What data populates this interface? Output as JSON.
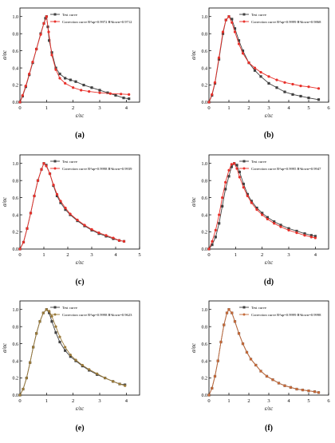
{
  "figure": {
    "ylabel": "σ/σc",
    "xlabel": "ε/εc"
  },
  "chart_data": [
    {
      "panel_label": "(a)",
      "type": "line",
      "xlabel": "ε/εc",
      "ylabel": "σ/σc",
      "xlim": [
        0,
        4.5
      ],
      "ylim": [
        0,
        1.1
      ],
      "xticks": [
        0,
        1,
        2,
        3,
        4
      ],
      "yticks": [
        0.0,
        0.2,
        0.4,
        0.6,
        0.8,
        1.0
      ],
      "legend": "top-right",
      "series": [
        {
          "name": "Test curve",
          "color": "#404040",
          "marker": "square",
          "x": [
            0,
            0.1,
            0.22,
            0.35,
            0.48,
            0.62,
            0.78,
            0.9,
            0.96,
            1.0,
            1.05,
            1.1,
            1.2,
            1.35,
            1.5,
            1.7,
            1.9,
            2.1,
            2.4,
            2.7,
            3.0,
            3.3,
            3.6,
            3.9,
            4.1
          ],
          "y": [
            0,
            0.07,
            0.18,
            0.32,
            0.46,
            0.62,
            0.8,
            0.92,
            0.98,
            1.0,
            0.88,
            0.72,
            0.58,
            0.4,
            0.33,
            0.28,
            0.26,
            0.24,
            0.2,
            0.17,
            0.14,
            0.11,
            0.08,
            0.05,
            0.04
          ]
        },
        {
          "name": "Correction curve R²up=0.9972 R²down=0.9712",
          "color": "#e8302a",
          "marker": "circle",
          "x": [
            0,
            0.1,
            0.22,
            0.35,
            0.48,
            0.62,
            0.78,
            0.9,
            1.0,
            1.08,
            1.2,
            1.35,
            1.5,
            1.7,
            2.0,
            2.3,
            2.6,
            3.0,
            3.4,
            3.8,
            4.1
          ],
          "y": [
            0,
            0.08,
            0.19,
            0.33,
            0.47,
            0.62,
            0.79,
            0.92,
            1.0,
            0.82,
            0.55,
            0.38,
            0.28,
            0.22,
            0.17,
            0.14,
            0.125,
            0.11,
            0.1,
            0.095,
            0.09
          ]
        }
      ]
    },
    {
      "panel_label": "(b)",
      "type": "line",
      "xlabel": "ε/εc",
      "ylabel": "σ/σc",
      "xlim": [
        0,
        6
      ],
      "ylim": [
        0,
        1.1
      ],
      "xticks": [
        0,
        1,
        2,
        3,
        4,
        5,
        6
      ],
      "yticks": [
        0.0,
        0.2,
        0.4,
        0.6,
        0.8,
        1.0
      ],
      "legend": "top-right",
      "series": [
        {
          "name": "Test curve",
          "color": "#404040",
          "marker": "square",
          "x": [
            0,
            0.15,
            0.3,
            0.5,
            0.7,
            0.85,
            1.0,
            1.15,
            1.3,
            1.5,
            1.7,
            2.0,
            2.3,
            2.6,
            3.0,
            3.4,
            3.8,
            4.2,
            4.6,
            5.0,
            5.5
          ],
          "y": [
            0,
            0.08,
            0.22,
            0.5,
            0.8,
            0.96,
            1.0,
            0.97,
            0.86,
            0.72,
            0.6,
            0.46,
            0.37,
            0.3,
            0.22,
            0.17,
            0.12,
            0.09,
            0.07,
            0.05,
            0.03
          ]
        },
        {
          "name": "Correction curve R²up=0.9999 R²down=0.9868",
          "color": "#e8302a",
          "marker": "circle",
          "x": [
            0,
            0.15,
            0.3,
            0.5,
            0.7,
            0.85,
            1.0,
            1.15,
            1.3,
            1.5,
            1.7,
            2.0,
            2.3,
            2.6,
            3.0,
            3.4,
            3.8,
            4.2,
            4.6,
            5.0,
            5.5
          ],
          "y": [
            0,
            0.09,
            0.23,
            0.52,
            0.82,
            0.96,
            1.0,
            0.93,
            0.82,
            0.68,
            0.57,
            0.46,
            0.4,
            0.35,
            0.3,
            0.26,
            0.23,
            0.21,
            0.19,
            0.18,
            0.16
          ]
        }
      ]
    },
    {
      "panel_label": "(c)",
      "type": "line",
      "xlabel": "ε/εc",
      "ylabel": "σ/σc",
      "xlim": [
        0,
        5
      ],
      "ylim": [
        0,
        1.1
      ],
      "xticks": [
        0,
        1,
        2,
        3,
        4,
        5
      ],
      "yticks": [
        0.0,
        0.2,
        0.4,
        0.6,
        0.8,
        1.0
      ],
      "legend": "top-right",
      "series": [
        {
          "name": "Test curve",
          "color": "#404040",
          "marker": "square",
          "x": [
            0,
            0.15,
            0.3,
            0.45,
            0.6,
            0.75,
            0.9,
            1.0,
            1.1,
            1.25,
            1.4,
            1.55,
            1.7,
            1.9,
            2.1,
            2.4,
            2.7,
            3.0,
            3.3,
            3.6,
            3.9,
            4.15,
            4.35
          ],
          "y": [
            0,
            0.08,
            0.24,
            0.42,
            0.62,
            0.8,
            0.93,
            1.0,
            0.98,
            0.88,
            0.74,
            0.62,
            0.54,
            0.46,
            0.4,
            0.33,
            0.27,
            0.22,
            0.18,
            0.15,
            0.12,
            0.1,
            0.09
          ]
        },
        {
          "name": "Correction curve R²up=0.9998 R²down=0.9939",
          "color": "#e8302a",
          "marker": "circle",
          "x": [
            0,
            0.15,
            0.3,
            0.45,
            0.6,
            0.75,
            0.9,
            1.0,
            1.1,
            1.25,
            1.4,
            1.55,
            1.7,
            1.9,
            2.1,
            2.4,
            2.7,
            3.0,
            3.3,
            3.6,
            3.9,
            4.15,
            4.35
          ],
          "y": [
            0,
            0.08,
            0.24,
            0.42,
            0.62,
            0.8,
            0.93,
            1.0,
            0.97,
            0.88,
            0.75,
            0.64,
            0.56,
            0.48,
            0.41,
            0.34,
            0.28,
            0.23,
            0.19,
            0.16,
            0.13,
            0.1,
            0.09
          ]
        }
      ]
    },
    {
      "panel_label": "(d)",
      "type": "line",
      "xlabel": "ε/εc",
      "ylabel": "σ/σc",
      "xlim": [
        0,
        4.5
      ],
      "ylim": [
        0,
        1.1
      ],
      "xticks": [
        0,
        1,
        2,
        3,
        4
      ],
      "yticks": [
        0.0,
        0.2,
        0.4,
        0.6,
        0.8,
        1.0
      ],
      "legend": "top-right",
      "series": [
        {
          "name": "Test curve",
          "color": "#404040",
          "marker": "square",
          "x": [
            0,
            0.12,
            0.25,
            0.38,
            0.5,
            0.62,
            0.75,
            0.85,
            0.95,
            1.05,
            1.15,
            1.3,
            1.45,
            1.6,
            1.8,
            2.0,
            2.2,
            2.45,
            2.7,
            3.0,
            3.3,
            3.6,
            3.85,
            4.0
          ],
          "y": [
            0,
            0.05,
            0.14,
            0.3,
            0.5,
            0.7,
            0.85,
            0.96,
            1.0,
            0.98,
            0.9,
            0.76,
            0.64,
            0.56,
            0.48,
            0.42,
            0.37,
            0.32,
            0.28,
            0.24,
            0.21,
            0.18,
            0.16,
            0.15
          ]
        },
        {
          "name": "Correction curve R²up=0.9995 R²down=0.9947",
          "color": "#e8302a",
          "marker": "circle",
          "x": [
            0,
            0.12,
            0.25,
            0.38,
            0.5,
            0.62,
            0.75,
            0.85,
            0.95,
            1.05,
            1.15,
            1.3,
            1.45,
            1.6,
            1.8,
            2.0,
            2.2,
            2.45,
            2.7,
            3.0,
            3.3,
            3.6,
            3.85,
            4.0
          ],
          "y": [
            0,
            0.09,
            0.22,
            0.4,
            0.6,
            0.78,
            0.92,
            0.99,
            1.0,
            0.94,
            0.84,
            0.72,
            0.62,
            0.54,
            0.46,
            0.4,
            0.35,
            0.3,
            0.26,
            0.22,
            0.19,
            0.16,
            0.14,
            0.13
          ]
        }
      ]
    },
    {
      "panel_label": "(e)",
      "type": "line",
      "xlabel": "ε/εc",
      "ylabel": "σ/σc",
      "xlim": [
        0,
        4.5
      ],
      "ylim": [
        0,
        1.1
      ],
      "xticks": [
        0,
        1,
        2,
        3,
        4
      ],
      "yticks": [
        0.0,
        0.2,
        0.4,
        0.6,
        0.8,
        1.0
      ],
      "legend": "top-right",
      "series": [
        {
          "name": "Test curve",
          "color": "#404040",
          "marker": "square",
          "x": [
            0,
            0.12,
            0.25,
            0.38,
            0.5,
            0.62,
            0.75,
            0.88,
            1.0,
            1.1,
            1.2,
            1.35,
            1.5,
            1.7,
            1.9,
            2.1,
            2.35,
            2.6,
            2.9,
            3.2,
            3.5,
            3.75,
            3.95
          ],
          "y": [
            0,
            0.07,
            0.2,
            0.38,
            0.56,
            0.72,
            0.86,
            0.96,
            1.0,
            0.96,
            0.86,
            0.73,
            0.62,
            0.52,
            0.45,
            0.4,
            0.34,
            0.29,
            0.24,
            0.2,
            0.16,
            0.13,
            0.12
          ]
        },
        {
          "name": "Correction curve R²up=0.9998 R²down=0.9623",
          "color": "#9a7a3a",
          "marker": "circle",
          "x": [
            0,
            0.12,
            0.25,
            0.38,
            0.5,
            0.62,
            0.75,
            0.88,
            1.0,
            1.1,
            1.2,
            1.35,
            1.5,
            1.7,
            1.9,
            2.1,
            2.35,
            2.6,
            2.9,
            3.2,
            3.5,
            3.75,
            3.95
          ],
          "y": [
            0,
            0.07,
            0.2,
            0.38,
            0.56,
            0.72,
            0.86,
            0.96,
            1.0,
            0.98,
            0.92,
            0.8,
            0.68,
            0.56,
            0.47,
            0.41,
            0.35,
            0.3,
            0.25,
            0.2,
            0.16,
            0.13,
            0.11
          ]
        }
      ]
    },
    {
      "panel_label": "(f)",
      "type": "line",
      "xlabel": "ε/εc",
      "ylabel": "σ/σc",
      "xlim": [
        0,
        6
      ],
      "ylim": [
        0,
        1.1
      ],
      "xticks": [
        0,
        1,
        2,
        3,
        4,
        5,
        6
      ],
      "yticks": [
        0.0,
        0.2,
        0.4,
        0.6,
        0.8,
        1.0
      ],
      "legend": "top-right",
      "series": [
        {
          "name": "Test curve",
          "color": "#404040",
          "marker": "square",
          "x": [
            0,
            0.15,
            0.3,
            0.45,
            0.6,
            0.75,
            0.9,
            1.0,
            1.15,
            1.3,
            1.5,
            1.7,
            1.9,
            2.1,
            2.35,
            2.6,
            2.9,
            3.2,
            3.5,
            3.8,
            4.1,
            4.4,
            4.7,
            5.0,
            5.3,
            5.5
          ],
          "y": [
            0,
            0.08,
            0.22,
            0.4,
            0.62,
            0.82,
            0.96,
            1.0,
            0.96,
            0.86,
            0.72,
            0.6,
            0.5,
            0.42,
            0.35,
            0.28,
            0.22,
            0.18,
            0.14,
            0.11,
            0.09,
            0.07,
            0.06,
            0.05,
            0.04,
            0.03
          ]
        },
        {
          "name": "Correction curve R²up=0.9999 R²down=0.9998",
          "color": "#c56a3a",
          "marker": "circle",
          "x": [
            0,
            0.15,
            0.3,
            0.45,
            0.6,
            0.75,
            0.9,
            1.0,
            1.15,
            1.3,
            1.5,
            1.7,
            1.9,
            2.1,
            2.35,
            2.6,
            2.9,
            3.2,
            3.5,
            3.8,
            4.1,
            4.4,
            4.7,
            5.0,
            5.3,
            5.5
          ],
          "y": [
            0,
            0.08,
            0.22,
            0.4,
            0.62,
            0.82,
            0.96,
            1.0,
            0.96,
            0.86,
            0.72,
            0.6,
            0.5,
            0.42,
            0.35,
            0.28,
            0.22,
            0.18,
            0.14,
            0.11,
            0.09,
            0.07,
            0.06,
            0.05,
            0.04,
            0.03
          ]
        }
      ]
    }
  ]
}
